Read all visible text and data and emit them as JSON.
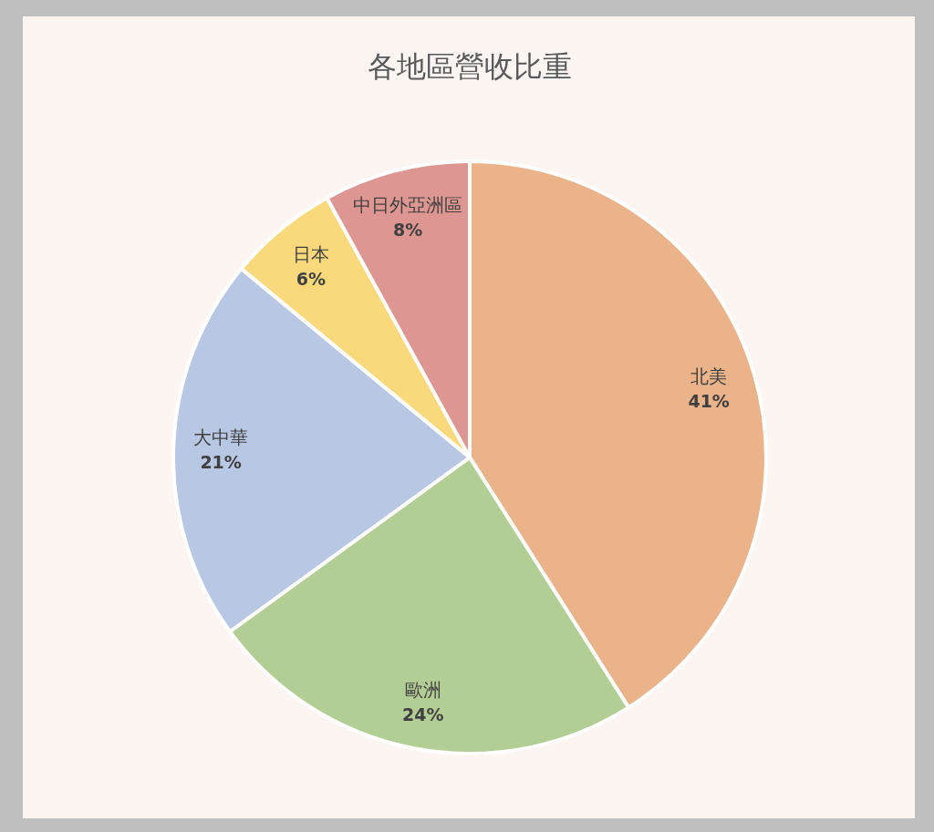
{
  "chart_data": {
    "type": "pie",
    "title": "各地區營收比重",
    "categories": [
      "北美",
      "歐洲",
      "大中華",
      "日本",
      "中日外亞洲區"
    ],
    "values": [
      41,
      24,
      21,
      6,
      8
    ],
    "value_labels": [
      "41%",
      "24%",
      "21%",
      "6%",
      "8%"
    ],
    "colors": [
      "#ebb38a",
      "#b3ce94",
      "#b7c7e4",
      "#f9d97c",
      "#dd9691"
    ],
    "legend": false
  }
}
